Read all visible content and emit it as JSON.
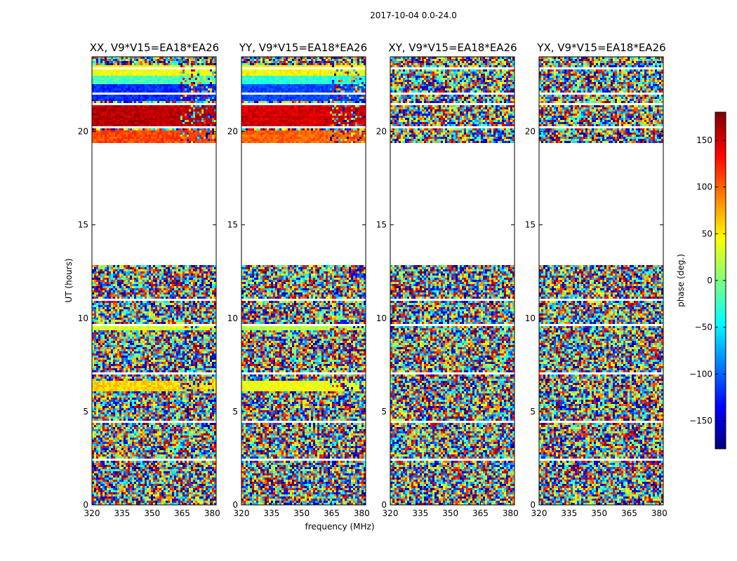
{
  "figure": {
    "suptitle": "2017-10-04 0.0-24.0",
    "xlabel": "frequency (MHz)",
    "ylabel": "UT (hours)",
    "colorbar_label": "phase (deg.)",
    "colorbar_ticks": [
      "150",
      "100",
      "50",
      "0",
      "−50",
      "−100",
      "−150"
    ],
    "colorbar_tick_values": [
      150,
      100,
      50,
      0,
      -50,
      -100,
      -150
    ],
    "colorbar_range": [
      -180,
      180
    ],
    "colorbar_stops": [
      "#00007f",
      "#0000ff",
      "#007fff",
      "#00ffff",
      "#7fff7f",
      "#ffff00",
      "#ff7f00",
      "#ff0000",
      "#7f0000"
    ]
  },
  "chart_data": {
    "type": "heatmap",
    "title": "2017-10-04 0.0-24.0",
    "xlabel": "frequency (MHz)",
    "ylabel": "UT (hours)",
    "xlim": [
      320,
      382
    ],
    "ylim": [
      0,
      24
    ],
    "x_ticks": [
      320,
      335,
      350,
      365,
      380
    ],
    "x_tick_labels": [
      "320",
      "335",
      "350",
      "365",
      "380"
    ],
    "y_ticks": [
      0,
      5,
      10,
      15,
      20
    ],
    "y_tick_labels": [
      "0",
      "5",
      "10",
      "15",
      "20"
    ],
    "value_label": "phase (deg.)",
    "value_range": [
      -180,
      180
    ],
    "no_data_ut": [
      [
        12.8,
        19.4
      ]
    ],
    "blank_rows_ut": [
      2.4,
      4.4,
      7.0,
      9.6,
      11.0,
      20.2,
      21.5,
      22.0,
      23.4
    ],
    "panels": [
      {
        "title": "XX, V9*V15=EA18*EA26",
        "pattern": "coherent",
        "coherent_bands": [
          {
            "ut": [
              19.4,
              20.1
            ],
            "phase": 110
          },
          {
            "ut": [
              20.3,
              21.5
            ],
            "phase": 160
          },
          {
            "ut": [
              21.6,
              22.5
            ],
            "phase": -120
          },
          {
            "ut": [
              22.5,
              23.0
            ],
            "phase": -20
          },
          {
            "ut": [
              23.0,
              23.6
            ],
            "phase": 40
          },
          {
            "ut": [
              6.1,
              6.6
            ],
            "phase": 60
          },
          {
            "ut": [
              9.3,
              9.6
            ],
            "phase": 30
          }
        ]
      },
      {
        "title": "YY, V9*V15=EA18*EA26",
        "pattern": "coherent",
        "coherent_bands": [
          {
            "ut": [
              19.4,
              20.1
            ],
            "phase": 100
          },
          {
            "ut": [
              20.3,
              21.5
            ],
            "phase": 150
          },
          {
            "ut": [
              21.6,
              22.5
            ],
            "phase": -110
          },
          {
            "ut": [
              22.5,
              23.0
            ],
            "phase": -30
          },
          {
            "ut": [
              23.0,
              23.6
            ],
            "phase": 45
          },
          {
            "ut": [
              6.1,
              6.6
            ],
            "phase": 40
          },
          {
            "ut": [
              9.3,
              9.6
            ],
            "phase": 20
          }
        ]
      },
      {
        "title": "XY, V9*V15=EA18*EA26",
        "pattern": "noise",
        "coherent_bands": []
      },
      {
        "title": "YX, V9*V15=EA18*EA26",
        "pattern": "noise",
        "coherent_bands": []
      }
    ]
  }
}
